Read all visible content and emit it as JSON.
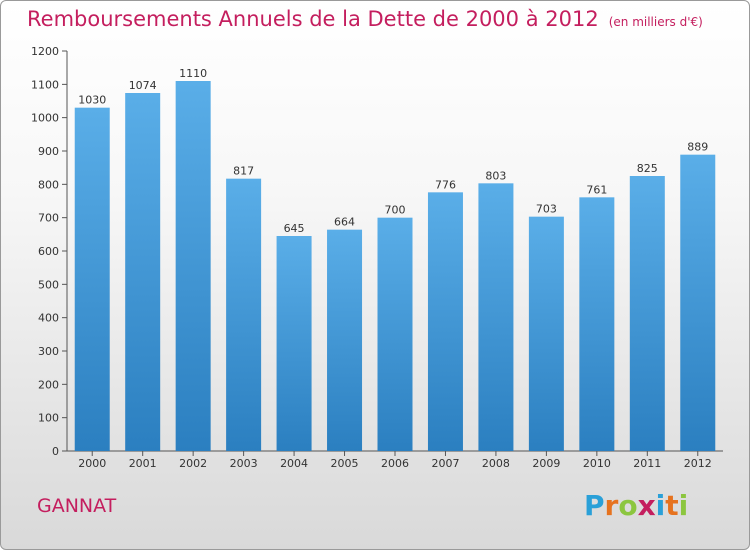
{
  "header": {
    "title": "Remboursements Annuels de la Dette de 2000 à 2012",
    "subtitle": "(en milliers d'€)"
  },
  "footer": {
    "city": "GANNAT",
    "logo_letters": [
      "P",
      "r",
      "o",
      "x",
      "i",
      "t",
      "i"
    ],
    "logo_colors": [
      "#2aa0d8",
      "#e6731f",
      "#8cc63f",
      "#c41e5e",
      "#2aa0d8",
      "#e6731f",
      "#8cc63f"
    ]
  },
  "colors": {
    "accent": "#c41e5e",
    "bar_top": "#5aaee8",
    "bar_bottom": "#2b7fc0",
    "axis": "#555555",
    "grid": "#d8d8d8"
  },
  "chart_data": {
    "type": "bar",
    "categories": [
      "2000",
      "2001",
      "2002",
      "2003",
      "2004",
      "2005",
      "2006",
      "2007",
      "2008",
      "2009",
      "2010",
      "2011",
      "2012"
    ],
    "values": [
      1030,
      1074,
      1110,
      817,
      645,
      664,
      700,
      776,
      803,
      703,
      761,
      825,
      889
    ],
    "ylim": [
      0,
      1200
    ],
    "yticks": [
      0,
      100,
      200,
      300,
      400,
      500,
      600,
      700,
      800,
      900,
      1000,
      1100,
      1200
    ],
    "grid": false,
    "data_labels": true
  }
}
